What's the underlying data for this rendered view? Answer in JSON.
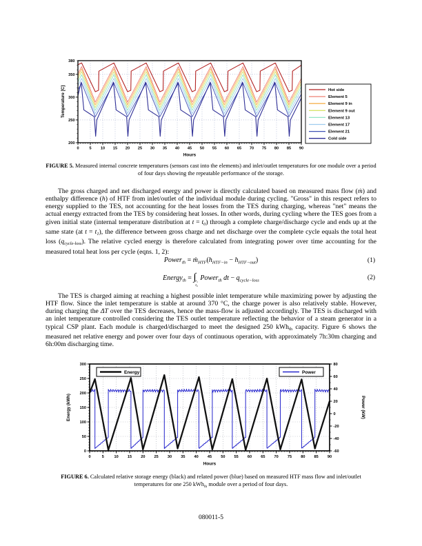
{
  "page": {
    "footer": "080011-5"
  },
  "figure5": {
    "caption_label": "FIGURE 5.",
    "caption_text": " Measured internal concrete temperatures (sensors cast into the elements) and inlet/outlet temperatures for one module over a period of four days showing the repeatable performance of the storage."
  },
  "figure6": {
    "caption_label": "FIGURE 6.",
    "caption_rich": [
      {
        "t": " Calculated relative storage energy (black) and related power (blue) based on measured HTF mass flow and inlet/outlet temperatures for one 250 kWh"
      },
      {
        "t": "th",
        "sub": 1
      },
      {
        "t": " module over a period of four days."
      }
    ]
  },
  "paragraphs": {
    "p1": [
      {
        "t": "The gross charged and net discharged energy and power is directly calculated based on measured mass flow ("
      },
      {
        "t": "ṁ",
        "i": 1
      },
      {
        "t": ") and enthalpy difference ("
      },
      {
        "t": "h",
        "i": 1
      },
      {
        "t": ") of HTF from inlet/outlet of the individual module during cycling. \"Gross\" in this respect refers to energy supplied to the TES, not accounting for the heat losses from the TES during charging, whereas \"net\" means the actual energy extracted from the TES by considering heat losses. In other words, during cycling where the TES goes from a given initial state (internal temperature distribution at "
      },
      {
        "t": "t",
        "i": 1
      },
      {
        "t": " = "
      },
      {
        "t": "t",
        "i": 1
      },
      {
        "t": "0",
        "i": 1,
        "sub": 1
      },
      {
        "t": ") through a complete charge/discharge cycle and ends up at the same state (at "
      },
      {
        "t": "t",
        "i": 1
      },
      {
        "t": " = "
      },
      {
        "t": "t",
        "i": 1
      },
      {
        "t": "1",
        "i": 1,
        "sub": 1
      },
      {
        "t": "), the difference between gross charge and net discharge over the complete cycle equals the total heat loss ("
      },
      {
        "t": "q",
        "i": 1
      },
      {
        "t": "cycle-loss",
        "i": 1,
        "sub": 1
      },
      {
        "t": "). The relative cycled energy is therefore calculated from integrating power over time accounting for the measured total heat loss per cycle (eqns. 1, 2):"
      }
    ],
    "p2": [
      {
        "t": "The TES is charged aiming at reaching a highest possible inlet temperature while maximizing power by adjusting the HTF flow. Since the inlet temperature is stable at around 370 °C, the charge power is also relatively stable. However, during charging the "
      },
      {
        "t": "ΔT",
        "i": 1
      },
      {
        "t": " over the TES decreases, hence the mass-flow is adjusted accordingly. The TES is discharged with an inlet temperature controlled considering the TES outlet temperature reflecting the behavior of a steam generator in a typical CSP plant. Each module is charged/discharged to meet the designed 250 kWh"
      },
      {
        "t": "th",
        "sub": 1
      },
      {
        "t": " capacity. Figure 6 shows the measured net relative energy and power over four days of continuous operation, with approximately 7h:30m charging and 6h:00m discharging time."
      }
    ]
  },
  "equations": {
    "eq1": {
      "number": "(1)",
      "segments": [
        {
          "t": "Power",
          "i": 1
        },
        {
          "t": "th",
          "i": 1,
          "sub": 1
        },
        {
          "t": " = "
        },
        {
          "t": "ṁ",
          "i": 1
        },
        {
          "t": "HTF",
          "i": 1,
          "sub": 1
        },
        {
          "t": "("
        },
        {
          "t": "h",
          "i": 1
        },
        {
          "t": "HTF−in",
          "i": 1,
          "sub": 1
        },
        {
          "t": " − "
        },
        {
          "t": "h",
          "i": 1
        },
        {
          "t": "HTF−out",
          "i": 1,
          "sub": 1
        },
        {
          "t": ")"
        }
      ]
    },
    "eq2": {
      "number": "(2)",
      "segments": [
        {
          "t": "Energy",
          "i": 1
        },
        {
          "t": "th",
          "i": 1,
          "sub": 1
        },
        {
          "t": " = "
        },
        {
          "t": "∫",
          "big": 1
        },
        {
          "lim": {
            "top": "t₁",
            "bottom": "t₀"
          }
        },
        {
          "t": " Power",
          "i": 1
        },
        {
          "t": "th",
          "i": 1,
          "sub": 1
        },
        {
          "t": " dt",
          "i": 1
        },
        {
          "t": " − "
        },
        {
          "t": "q",
          "i": 1
        },
        {
          "t": "cycle−loss",
          "i": 1,
          "sub": 1
        }
      ]
    }
  },
  "chart_data": [
    {
      "type": "line",
      "title": "",
      "xlabel": "Hours",
      "ylabel": "Temperature [C]",
      "xlim": [
        0,
        90
      ],
      "ylim": [
        200,
        380
      ],
      "xticks": [
        0,
        5,
        10,
        15,
        20,
        25,
        30,
        35,
        40,
        45,
        50,
        55,
        60,
        65,
        70,
        75,
        80,
        85,
        90
      ],
      "yticks": [
        200,
        250,
        300,
        350,
        380
      ],
      "grid_yticks": [
        250,
        300,
        350
      ],
      "grid": true,
      "legend_position": "right",
      "peak_times": [
        1.5,
        14.5,
        27.5,
        40.5,
        53.5,
        66.5,
        79.5
      ],
      "trough_times": [
        7,
        20,
        33,
        46,
        59,
        72,
        85
      ],
      "series": [
        {
          "name": "Hot side",
          "color": "#b22222",
          "peak": 375,
          "trough": 312,
          "profile": "hot"
        },
        {
          "name": "Element 5",
          "color": "#ef8073",
          "peak": 367,
          "trough": 289,
          "profile": "triangle"
        },
        {
          "name": "Element 9 in",
          "color": "#f6b352",
          "peak": 362,
          "trough": 283,
          "profile": "triangle"
        },
        {
          "name": "Element 9 out",
          "color": "#d7e46d",
          "peak": 356,
          "trough": 277,
          "profile": "triangle"
        },
        {
          "name": "Element 13",
          "color": "#93e6c5",
          "peak": 349,
          "trough": 271,
          "profile": "triangle"
        },
        {
          "name": "Element 17",
          "color": "#9ecbee",
          "peak": 341,
          "trough": 264,
          "profile": "triangle"
        },
        {
          "name": "Element 21",
          "color": "#3f51b5",
          "peak": 331,
          "trough": 257,
          "profile": "triangle"
        },
        {
          "name": "Cold side",
          "color": "#2f2f96",
          "peak": 333,
          "trough": 250,
          "spike_min": 214,
          "profile": "cold"
        }
      ]
    },
    {
      "type": "line",
      "title": "",
      "xlabel": "Hours",
      "ylabel_left": "Energy (kWh)",
      "ylabel_right": "Power (kW)",
      "xlim": [
        0,
        90
      ],
      "ylim_left": [
        0,
        300
      ],
      "ylim_right": [
        -60,
        80
      ],
      "xticks": [
        0,
        5,
        10,
        15,
        20,
        25,
        30,
        35,
        40,
        45,
        50,
        55,
        60,
        65,
        70,
        75,
        80,
        85,
        90
      ],
      "yticks_left": [
        0,
        50,
        100,
        150,
        200,
        250,
        300
      ],
      "yticks_right": [
        -60,
        -40,
        -20,
        0,
        20,
        40,
        60,
        80
      ],
      "grid": true,
      "legend": [
        {
          "name": "Energy",
          "color": "#111111"
        },
        {
          "name": "Power",
          "color": "#2424cc"
        }
      ],
      "energy_points": [
        [
          0,
          200
        ],
        [
          2,
          248
        ],
        [
          7,
          3
        ],
        [
          15.5,
          252
        ],
        [
          20,
          5
        ],
        [
          28,
          262
        ],
        [
          33,
          8
        ],
        [
          41,
          255
        ],
        [
          46,
          5
        ],
        [
          53.5,
          248
        ],
        [
          58.5,
          3
        ],
        [
          66.5,
          250
        ],
        [
          71.5,
          5
        ],
        [
          79.5,
          247
        ],
        [
          84.5,
          8
        ],
        [
          90,
          172
        ]
      ],
      "power": {
        "charge_kw": 37,
        "discharge_start_kw": -56,
        "discharge_end_kw": -38,
        "color": "#2424cc"
      }
    }
  ]
}
